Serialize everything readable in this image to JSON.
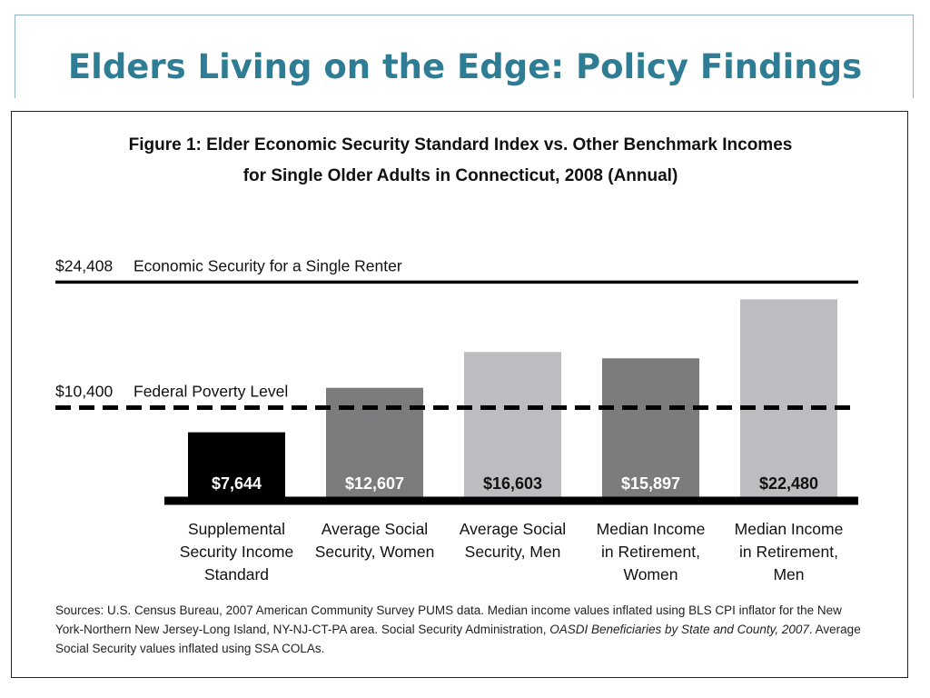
{
  "slide": {
    "title": "Elders Living on the Edge: Policy Findings"
  },
  "figure": {
    "title_line1": "Figure 1: Elder Economic Security Standard Index vs. Other Benchmark Incomes",
    "title_line2": "for Single Older Adults in Connecticut, 2008 (Annual)",
    "sources_part1": "Sources: U.S. Census Bureau, 2007 American Community Survey PUMS data. Median income values inflated using BLS CPI inflator for the New York-Northern New Jersey-Long Island, NY-NJ-CT-PA area. Social Security Administration, ",
    "sources_italic": "OASDI Beneficiaries by State and County, 2007",
    "sources_part2": ". Average Social Security values inflated using SSA COLAs."
  },
  "chart_data": {
    "type": "bar",
    "categories": [
      [
        "Supplemental",
        "Security Income",
        "Standard"
      ],
      [
        "Average Social",
        "Security, Women"
      ],
      [
        "Average Social",
        "Security, Men"
      ],
      [
        "Median Income",
        "in Retirement,",
        "Women"
      ],
      [
        "Median Income",
        "in Retirement,",
        "Men"
      ]
    ],
    "values": [
      7644,
      12607,
      16603,
      15897,
      22480
    ],
    "value_labels": [
      "$7,644",
      "$12,607",
      "$16,603",
      "$15,897",
      "$22,480"
    ],
    "bar_colors": [
      "#000000",
      "#7b7c7e",
      "#bcbdc0",
      "#7b7c7e",
      "#bcbdc0"
    ],
    "label_colors": [
      "#ffffff",
      "#ffffff",
      "#111111",
      "#ffffff",
      "#111111"
    ],
    "reference_lines": [
      {
        "value": 24408,
        "amount": "$24,408",
        "label": "Economic Security for a Single Renter",
        "style": "solid"
      },
      {
        "value": 10400,
        "amount": "$10,400",
        "label": "Federal Poverty Level",
        "style": "dashed"
      }
    ],
    "ylim": [
      0,
      24408
    ],
    "grid": false,
    "legend": "none"
  }
}
